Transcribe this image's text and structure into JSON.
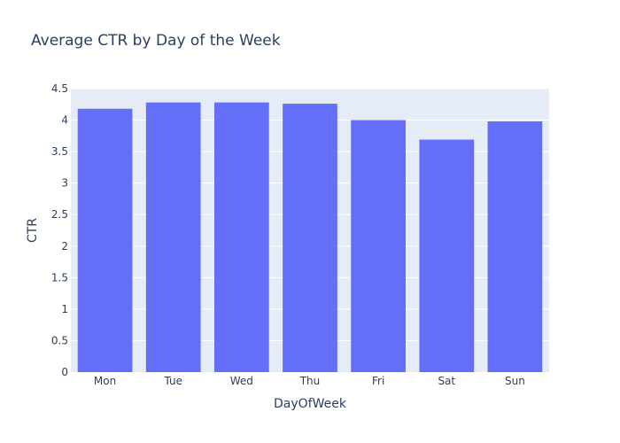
{
  "chart_data": {
    "type": "bar",
    "title": "Average CTR by Day of the Week",
    "xlabel": "DayOfWeek",
    "ylabel": "CTR",
    "categories": [
      "Mon",
      "Tue",
      "Wed",
      "Thu",
      "Fri",
      "Sat",
      "Sun"
    ],
    "values": [
      4.18,
      4.28,
      4.28,
      4.26,
      4.0,
      3.69,
      3.98
    ],
    "ylim": [
      0,
      4.5
    ],
    "yticks": [
      0,
      0.5,
      1,
      1.5,
      2,
      2.5,
      3,
      3.5,
      4,
      4.5
    ],
    "ytick_labels": [
      "0",
      "0.5",
      "1",
      "1.5",
      "2",
      "2.5",
      "3",
      "3.5",
      "4",
      "4.5"
    ],
    "grid": true,
    "colors": {
      "bar": "#636efa",
      "plot_bg": "#e5ecf6",
      "grid": "#ffffff",
      "text": "#2a3f5f"
    }
  }
}
